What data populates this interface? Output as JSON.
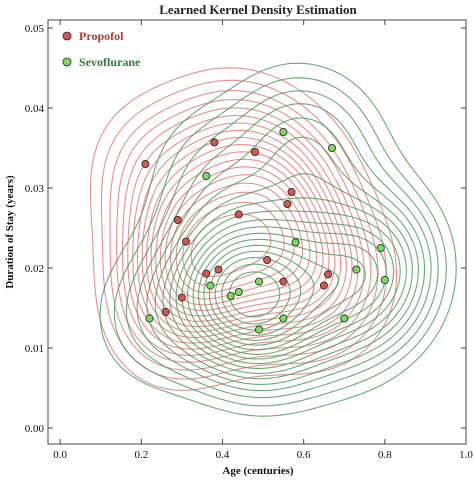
{
  "chart_data": {
    "type": "scatter",
    "title": "Learned Kernel Density Estimation",
    "xlabel": "Age (centuries)",
    "ylabel": "Duration of Stay (years)",
    "xlim": [
      -0.03,
      1.0
    ],
    "ylim": [
      -0.002,
      0.051
    ],
    "x_ticks": [
      0.0,
      0.2,
      0.4,
      0.6,
      0.8,
      1.0
    ],
    "x_tick_labels": [
      "0.0",
      "0.2",
      "0.4",
      "0.6",
      "0.8",
      "1.0"
    ],
    "y_ticks": [
      0.0,
      0.01,
      0.02,
      0.03,
      0.04,
      0.05
    ],
    "y_tick_labels": [
      "0.00",
      "0.01",
      "0.02",
      "0.03",
      "0.04",
      "0.05"
    ],
    "grid": false,
    "legend_position": "top-left",
    "overlay": "kernel density contours per series",
    "series": [
      {
        "name": "Propofol",
        "color": "#d9534f",
        "contour_color": "#e07b7b",
        "points": [
          [
            0.21,
            0.033
          ],
          [
            0.38,
            0.0357
          ],
          [
            0.48,
            0.0345
          ],
          [
            0.57,
            0.0295
          ],
          [
            0.29,
            0.026
          ],
          [
            0.56,
            0.028
          ],
          [
            0.44,
            0.0267
          ],
          [
            0.31,
            0.0233
          ],
          [
            0.51,
            0.021
          ],
          [
            0.36,
            0.0193
          ],
          [
            0.39,
            0.0198
          ],
          [
            0.66,
            0.0192
          ],
          [
            0.55,
            0.0183
          ],
          [
            0.65,
            0.0178
          ],
          [
            0.3,
            0.0163
          ],
          [
            0.26,
            0.0145
          ]
        ]
      },
      {
        "name": "Sevoflurane",
        "color": "#7bdc5c",
        "contour_color": "#4f9a5c",
        "points": [
          [
            0.55,
            0.037
          ],
          [
            0.67,
            0.035
          ],
          [
            0.36,
            0.0315
          ],
          [
            0.58,
            0.0232
          ],
          [
            0.79,
            0.0225
          ],
          [
            0.73,
            0.0198
          ],
          [
            0.8,
            0.0185
          ],
          [
            0.49,
            0.0183
          ],
          [
            0.37,
            0.0178
          ],
          [
            0.42,
            0.0165
          ],
          [
            0.44,
            0.017
          ],
          [
            0.22,
            0.0137
          ],
          [
            0.55,
            0.0137
          ],
          [
            0.7,
            0.0137
          ],
          [
            0.49,
            0.0123
          ]
        ]
      }
    ]
  }
}
